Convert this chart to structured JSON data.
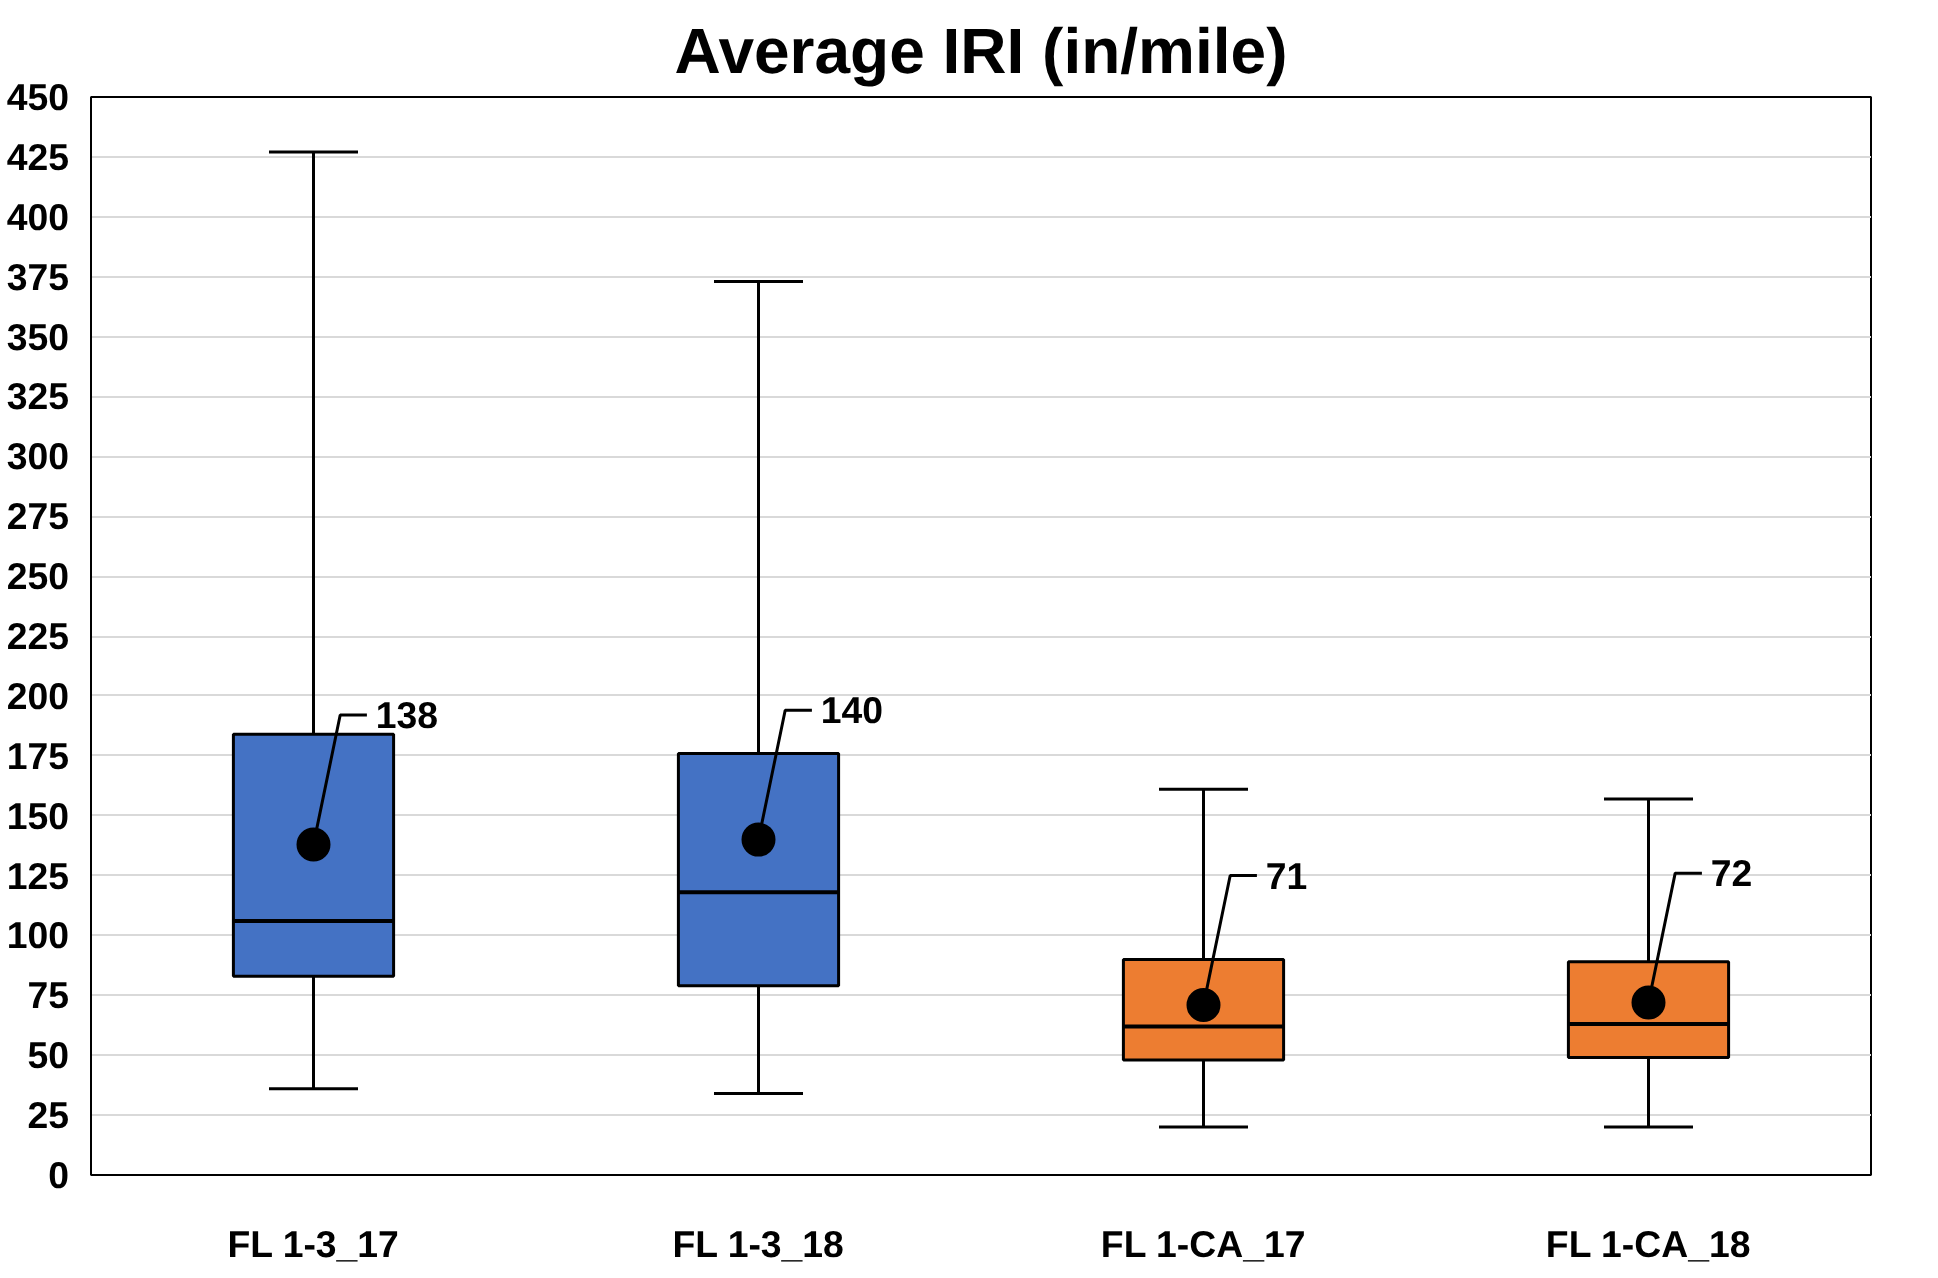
{
  "chart_data": {
    "type": "box",
    "title": "Average IRI (in/mile)",
    "categories": [
      "FL 1-3_17",
      "FL 1-3_18",
      "FL 1-CA_17",
      "FL 1-CA_18"
    ],
    "boxes": [
      {
        "low": 36,
        "q1": 83,
        "median": 106,
        "q3": 184,
        "high": 427,
        "mean": 138
      },
      {
        "low": 34,
        "q1": 79,
        "median": 118,
        "q3": 176,
        "high": 373,
        "mean": 140
      },
      {
        "low": 20,
        "q1": 48,
        "median": 62,
        "q3": 90,
        "high": 161,
        "mean": 71
      },
      {
        "low": 20,
        "q1": 49,
        "median": 63,
        "q3": 89,
        "high": 157,
        "mean": 72
      }
    ],
    "value_labels": [
      "138",
      "140",
      "71",
      "72"
    ],
    "colors": [
      "#4472c4",
      "#4472c4",
      "#ed7d31",
      "#ed7d31"
    ],
    "ylim": [
      0,
      450
    ],
    "yticks": [
      0,
      25,
      50,
      75,
      100,
      125,
      150,
      175,
      200,
      225,
      250,
      275,
      300,
      325,
      350,
      375,
      400,
      425,
      450
    ],
    "grid": "y",
    "data_labels": true,
    "marker": "circle"
  }
}
